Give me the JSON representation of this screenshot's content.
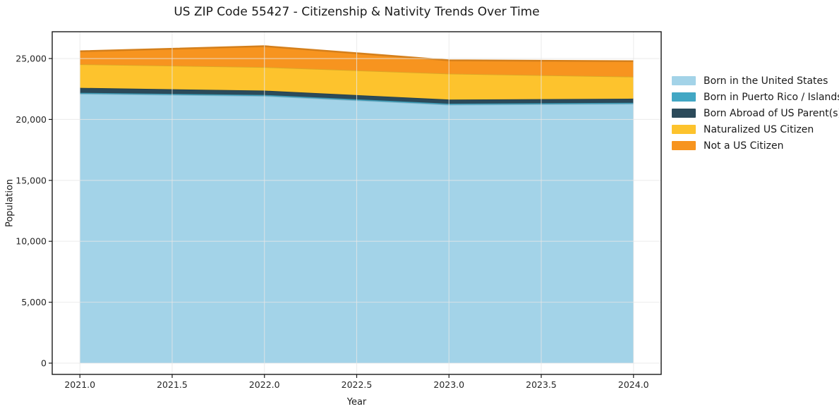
{
  "chart_data": {
    "type": "area",
    "stacked": true,
    "title": "US ZIP Code 55427 - Citizenship & Nativity Trends Over Time",
    "xlabel": "Year",
    "ylabel": "Population",
    "x": [
      2021,
      2022,
      2023,
      2024
    ],
    "series": [
      {
        "name": "Born in the United States",
        "color": "#A3D3E8",
        "values": [
          22100,
          21920,
          21205,
          21280
        ]
      },
      {
        "name": "Born in Puerto Rico / Islands",
        "color": "#42A7C4",
        "values": [
          90,
          95,
          90,
          90
        ]
      },
      {
        "name": "Born Abroad of US Parent(s)",
        "color": "#2B4A5A",
        "values": [
          405,
          350,
          335,
          340
        ]
      },
      {
        "name": "Naturalized US Citizen",
        "color": "#FDC32D",
        "values": [
          1930,
          1930,
          2125,
          1795
        ]
      },
      {
        "name": "Not a US Citizen",
        "color": "#F7941F",
        "values": [
          1065,
          1720,
          1100,
          1275
        ]
      }
    ],
    "xlim": [
      2020.85,
      2024.15
    ],
    "ylim": [
      -925,
      27200
    ],
    "x_tick_values": [
      2021.0,
      2021.5,
      2022.0,
      2022.5,
      2023.0,
      2023.5,
      2024.0
    ],
    "x_tick_labels": [
      "2021.0",
      "2021.5",
      "2022.0",
      "2022.5",
      "2023.0",
      "2023.5",
      "2024.0"
    ],
    "y_tick_values": [
      0,
      5000,
      10000,
      15000,
      20000,
      25000
    ],
    "y_tick_labels": [
      "0",
      "5,000",
      "10,000",
      "15,000",
      "20,000",
      "25,000"
    ],
    "legend_position": "right",
    "grid": true,
    "grid_color": "#e7e7e7",
    "spine_color": "#1a1a1a",
    "background_color": "#ffffff"
  }
}
